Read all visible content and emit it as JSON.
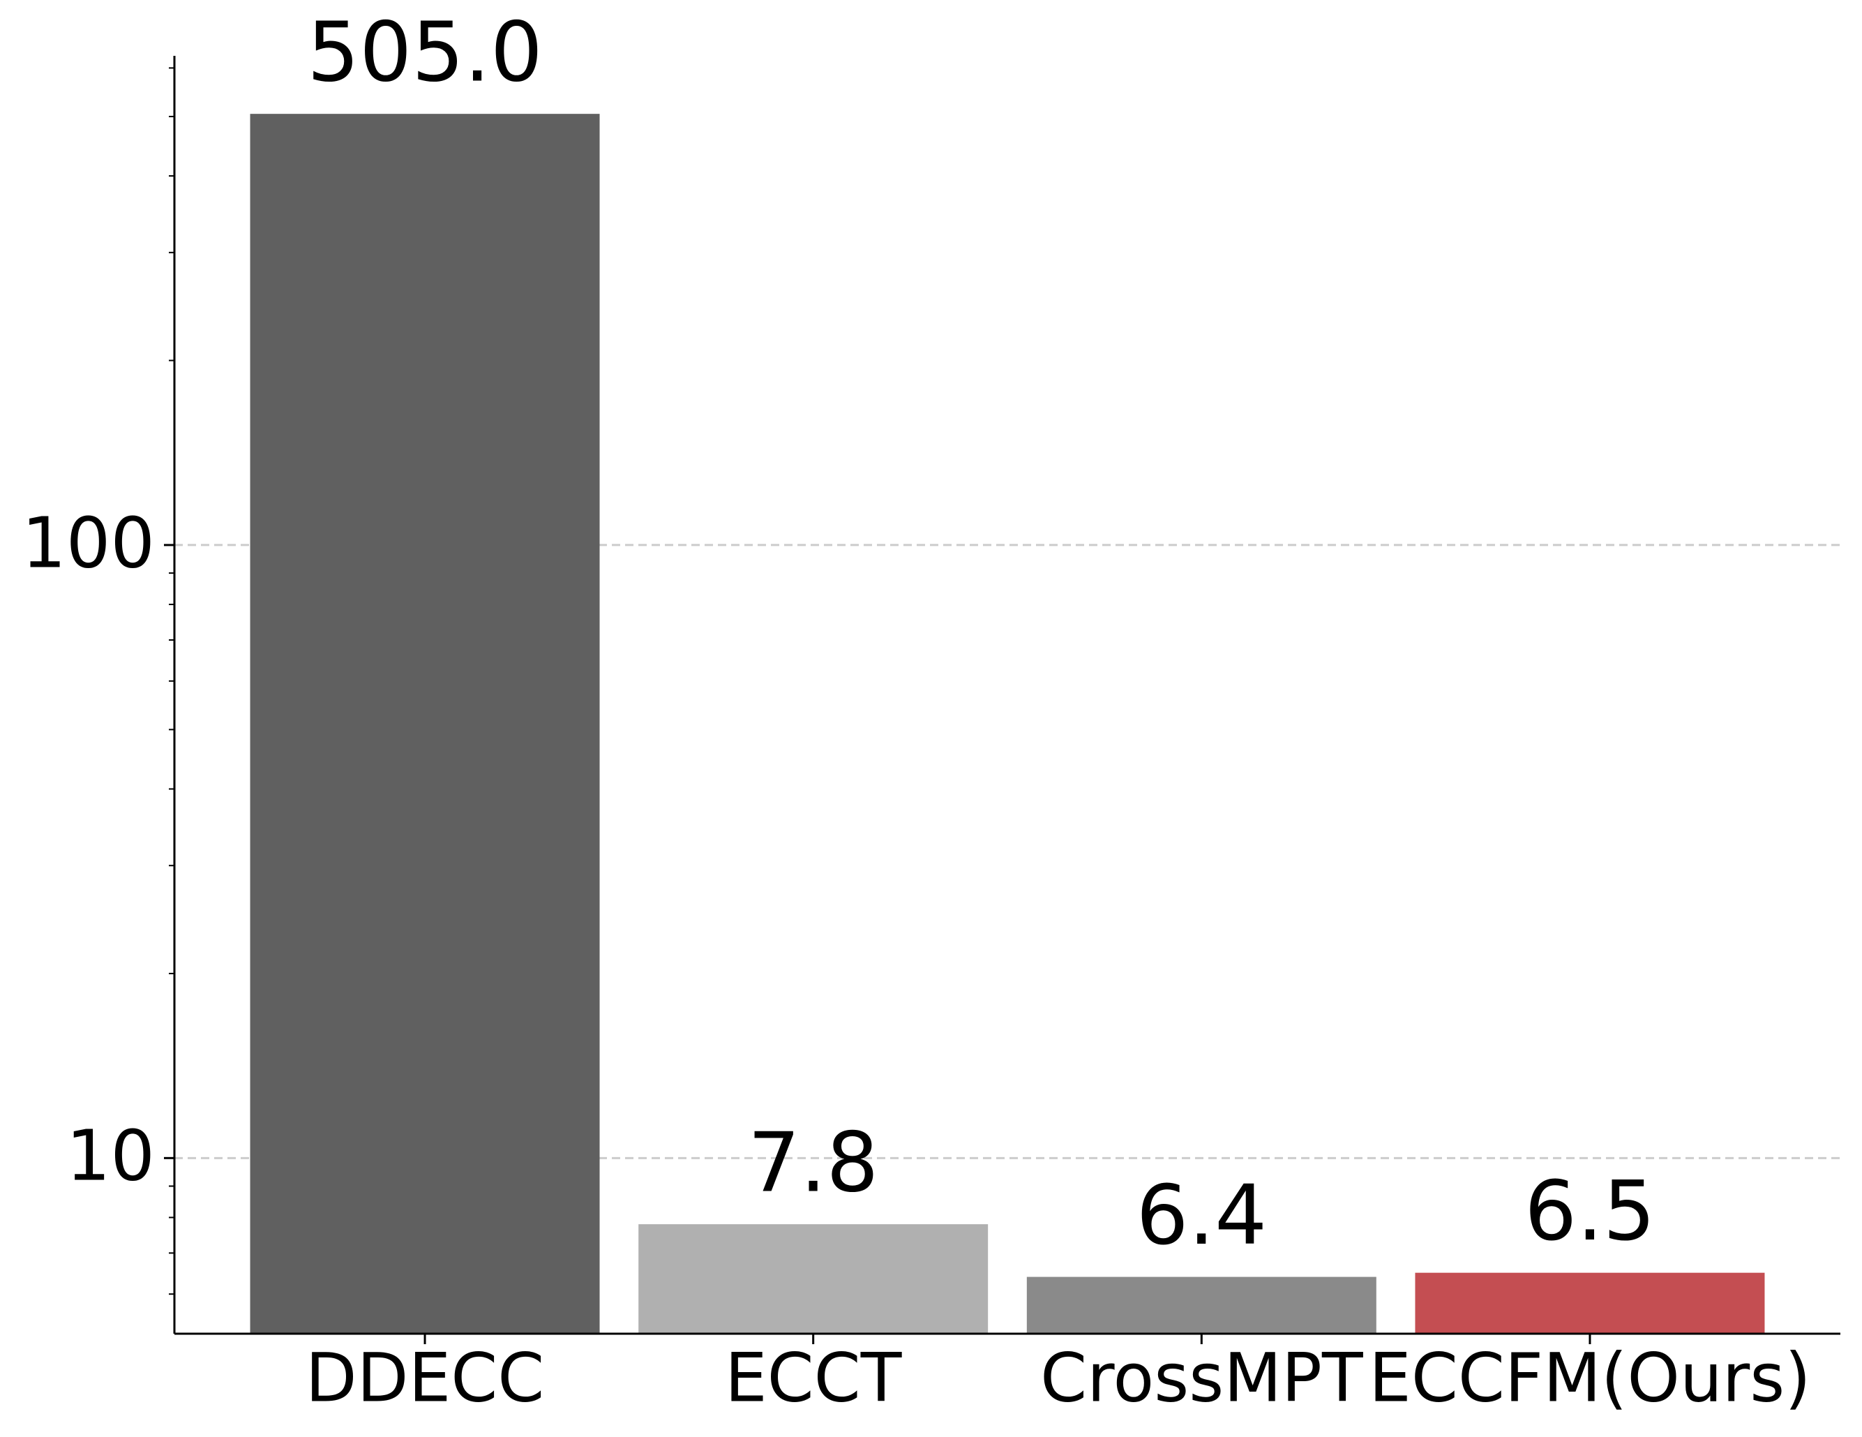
{
  "chart_data": {
    "type": "bar",
    "categories": [
      "DDECC",
      "ECCT",
      "CrossMPT",
      "ECCFM(Ours)"
    ],
    "values": [
      505.0,
      7.8,
      6.4,
      6.5
    ],
    "value_labels": [
      "505.0",
      "7.8",
      "6.4",
      "6.5"
    ],
    "colors": [
      "#606060",
      "#b0b0b0",
      "#8a8a8a",
      "#c44e52"
    ],
    "ylim": [
      5.17,
      628
    ],
    "yticks": [
      10,
      100
    ],
    "log_scale": true,
    "grid": true
  }
}
